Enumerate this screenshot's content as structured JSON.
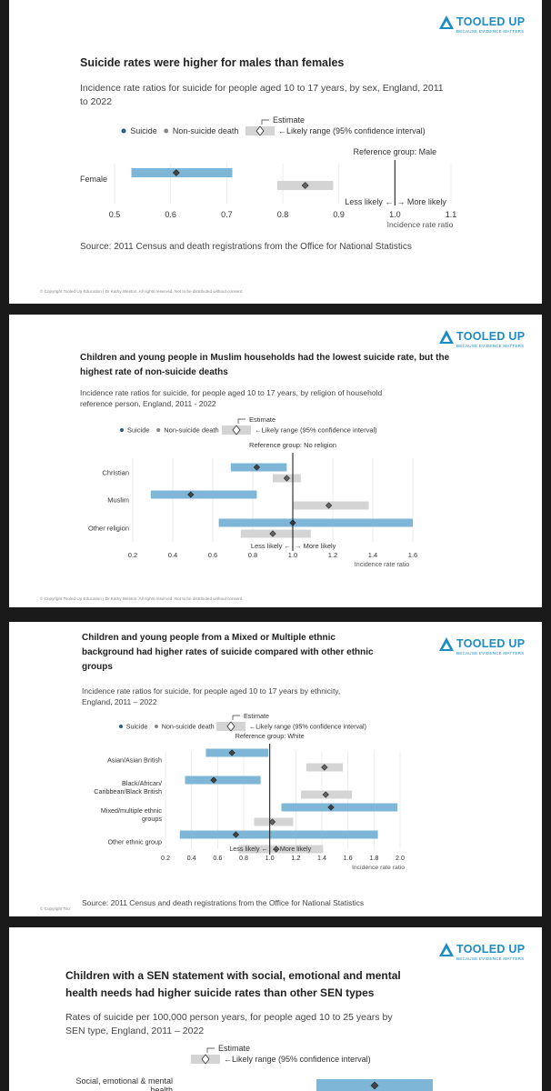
{
  "brand": {
    "name": "TOOLED UP",
    "tagline": "BECAUSE EVIDENCE MATTERS",
    "copyright": "© Copyright Tooled Up Education | Dr Kathy Weston. All rights reserved. Not to be distributed without consent.",
    "copyright_short": "© Copyright Too",
    "color": "#1b8cc4"
  },
  "legend": {
    "suicide": "Suicide",
    "non_suicide": "Non-suicide death",
    "estimate": "Estimate",
    "likely_range": "←Likely range (95% confidence interval)",
    "suicide_color": "#2b5d8a",
    "non_suicide_color": "#888888"
  },
  "slides": [
    {
      "title": "Suicide rates were higher for males than females",
      "subtitle": "Incidence rate ratios for suicide for people aged 10 to 17 years, by sex, England, 2011 to 2022",
      "source": "Source: 2011 Census and death registrations from the Office for National Statistics",
      "reference_label": "Reference group: Male",
      "less_likely": "Less likely ←",
      "more_likely": "→ More likely",
      "xlabel": "Incidence rate ratio"
    },
    {
      "title": "Children and young people in Muslim households had the lowest suicide rate, but the highest rate of non-suicide deaths",
      "subtitle": "Incidence rate ratios for suicide, for people aged 10 to 17 years, by religion of household reference person, England, 2011 - 2022",
      "reference_label": "Reference group: No religion",
      "less_likely": "Less likely ←",
      "more_likely": "→ More likely",
      "xlabel": "Incidence rate ratio"
    },
    {
      "title": "Children and young people from a Mixed or Multiple ethnic background had higher rates of suicide compared with other ethnic groups",
      "subtitle": "Incidence rate ratios for suicide, for people aged 10 to 17 years by ethnicity, England, 2011 – 2022",
      "source": "Source: 2011 Census and death registrations from the Office for National Statistics",
      "reference_label": "Reference group: White",
      "less_likely": "Less likely ←",
      "more_likely": "→ More likely",
      "xlabel": "Incidence rate ratio"
    },
    {
      "title": "Children with a SEN statement with social, emotional and mental health needs had higher suicide rates than other SEN types",
      "subtitle": "Rates of suicide per 100,000 person years, for people aged 10 to 25 years by SEN type, England, 2011 – 2022"
    }
  ],
  "chart_data": [
    {
      "type": "forest",
      "title": "Suicide rates were higher for males than females",
      "xlabel": "Incidence rate ratio",
      "xlim": [
        0.5,
        1.1
      ],
      "ticks": [
        0.5,
        0.6,
        0.7,
        0.8,
        0.9,
        1.0,
        1.1
      ],
      "tick_labels": [
        "0.5",
        "0.6",
        "0.7",
        "0.8",
        "0.9",
        "1.0",
        "1.1"
      ],
      "reference": 1.0,
      "categories": [
        "Female"
      ],
      "series": [
        {
          "name": "Suicide",
          "estimates": [
            0.61
          ],
          "lower": [
            0.53
          ],
          "upper": [
            0.71
          ]
        },
        {
          "name": "Non-suicide death",
          "estimates": [
            0.84
          ],
          "lower": [
            0.79
          ],
          "upper": [
            0.89
          ]
        }
      ]
    },
    {
      "type": "forest",
      "title": "Children and young people in Muslim households had the lowest suicide rate, but the highest rate of non-suicide deaths",
      "xlabel": "Incidence rate ratio",
      "xlim": [
        0.2,
        1.6
      ],
      "ticks": [
        0.2,
        0.4,
        0.6,
        0.8,
        1.0,
        1.2,
        1.4,
        1.6
      ],
      "tick_labels": [
        "0.2",
        "0.4",
        "0.6",
        "0.8",
        "1.0",
        "1.2",
        "1.4",
        "1.6"
      ],
      "reference": 1.0,
      "categories": [
        "Christian",
        "Muslim",
        "Other religion"
      ],
      "series": [
        {
          "name": "Suicide",
          "estimates": [
            0.82,
            0.49,
            1.0
          ],
          "lower": [
            0.69,
            0.29,
            0.63
          ],
          "upper": [
            0.97,
            0.82,
            1.6
          ]
        },
        {
          "name": "Non-suicide death",
          "estimates": [
            0.97,
            1.18,
            0.9
          ],
          "lower": [
            0.9,
            1.0,
            0.74
          ],
          "upper": [
            1.04,
            1.38,
            1.09
          ]
        }
      ]
    },
    {
      "type": "forest",
      "title": "Children and young people from a Mixed or Multiple ethnic background had higher rates of suicide compared with other ethnic groups",
      "xlabel": "Incidence rate ratio",
      "xlim": [
        0.2,
        2.0
      ],
      "ticks": [
        0.2,
        0.4,
        0.6,
        0.8,
        1.0,
        1.2,
        1.4,
        1.6,
        1.8,
        2.0
      ],
      "tick_labels": [
        "0.2",
        "0.4",
        "0.6",
        "0.8",
        "1.0",
        "1.2",
        "1.4",
        "1.6",
        "1.8",
        "2.0"
      ],
      "reference": 1.0,
      "categories": [
        "Asian/Asian British",
        "Black/African/Caribbean/Black British",
        "Mixed/multiple ethnic groups",
        "Other ethnic group"
      ],
      "category_lines": [
        [
          "Asian/Asian British"
        ],
        [
          "Black/African/",
          "Caribbean/Black British"
        ],
        [
          "Mixed/multiple ethnic",
          "groups"
        ],
        [
          "Other ethnic group"
        ]
      ],
      "series": [
        {
          "name": "Suicide",
          "estimates": [
            0.71,
            0.57,
            1.47,
            0.74
          ],
          "lower": [
            0.51,
            0.35,
            1.09,
            0.31
          ],
          "upper": [
            0.99,
            0.93,
            1.98,
            1.83
          ]
        },
        {
          "name": "Non-suicide death",
          "estimates": [
            1.42,
            1.43,
            1.02,
            1.05
          ],
          "lower": [
            1.28,
            1.24,
            0.88,
            0.76
          ],
          "upper": [
            1.56,
            1.63,
            1.18,
            1.41
          ]
        }
      ]
    },
    {
      "type": "forest",
      "title": "Children with a SEN statement with social, emotional and mental health needs had higher suicide rates than other SEN types",
      "xlabel": "",
      "categories": [
        "Social, emotional & mental health"
      ],
      "category_lines": [
        [
          "Social, emotional & mental",
          "health"
        ]
      ],
      "series": [
        {
          "name": "Suicide",
          "estimates": [
            null
          ],
          "lower": [
            null
          ],
          "upper": [
            null
          ]
        }
      ]
    }
  ]
}
